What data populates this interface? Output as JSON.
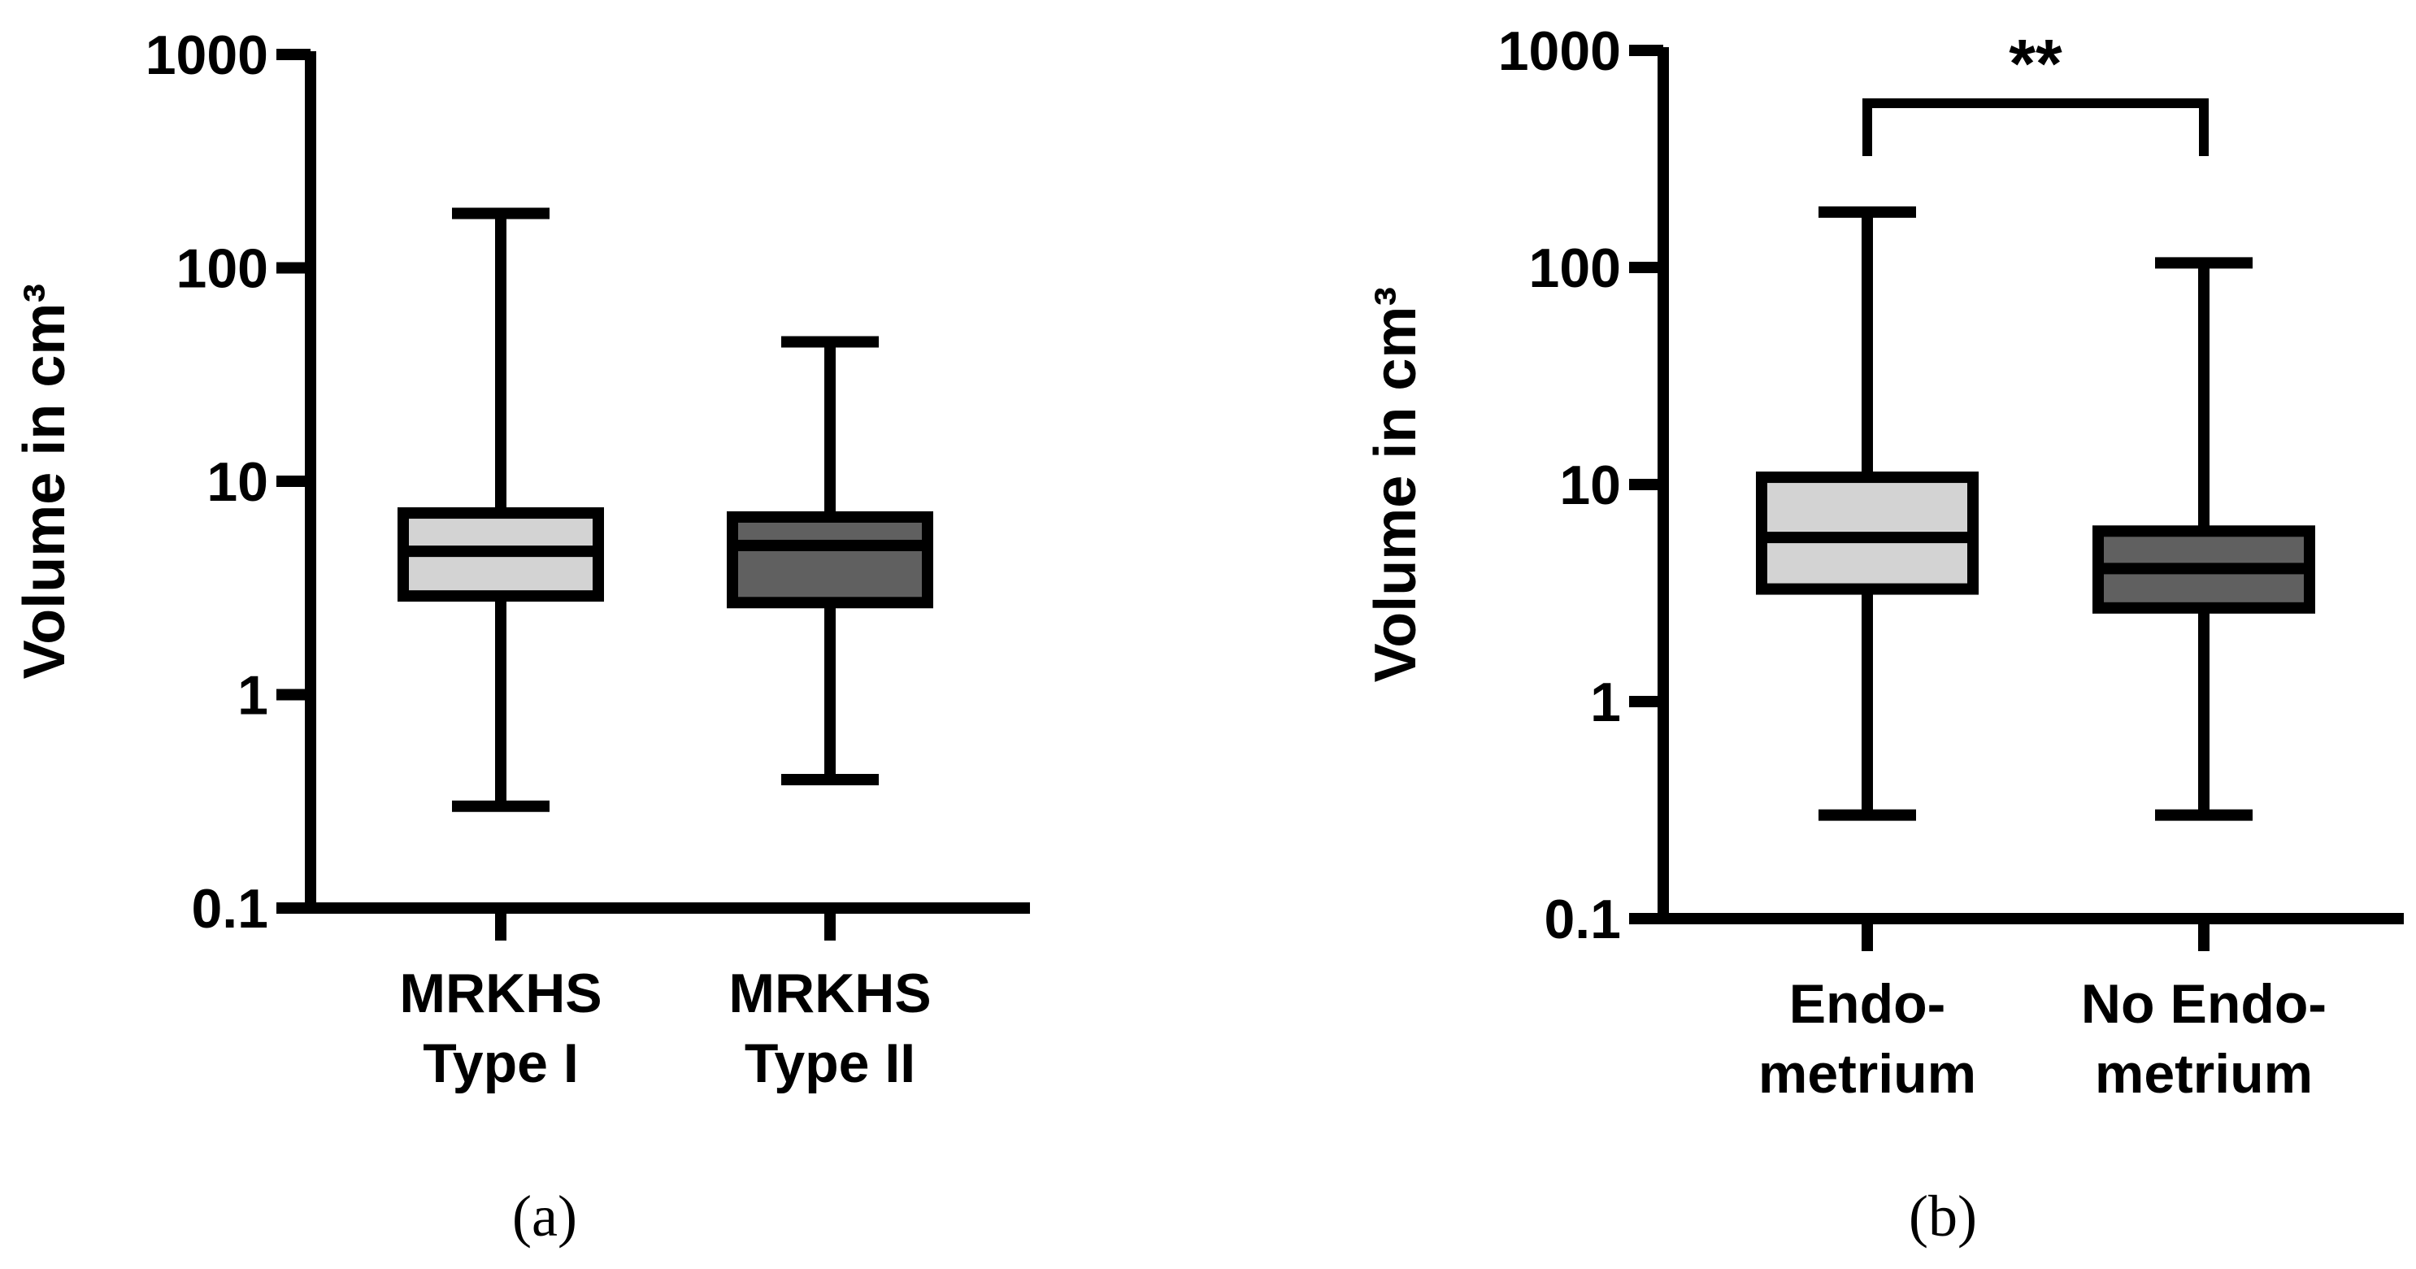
{
  "colors": {
    "axis": "#000000",
    "box_light": "#d3d3d3",
    "box_dark": "#606060"
  },
  "chart_data": [
    {
      "type": "box",
      "panel_label": "(a)",
      "ylabel": "Volume in cm³",
      "yscale": "log",
      "ylim": [
        0.1,
        1000
      ],
      "yticks": [
        "0.1",
        "1",
        "10",
        "100",
        "1000"
      ],
      "categories": [
        [
          "MRKHS",
          "Type I"
        ],
        [
          "MRKHS",
          "Type II"
        ]
      ],
      "boxes": [
        {
          "min": 0.3,
          "q1": 2.9,
          "median": 4.7,
          "q3": 7.1,
          "max": 180,
          "fill": "#d3d3d3"
        },
        {
          "min": 0.4,
          "q1": 2.7,
          "median": 5.0,
          "q3": 6.8,
          "max": 45,
          "fill": "#606060"
        }
      ],
      "significance": null
    },
    {
      "type": "box",
      "panel_label": "(b)",
      "ylabel": "Volume in cm³",
      "yscale": "log",
      "ylim": [
        0.1,
        1000
      ],
      "yticks": [
        "0.1",
        "1",
        "10",
        "100",
        "1000"
      ],
      "categories": [
        [
          "Endo-",
          "metrium"
        ],
        [
          "No Endo-",
          "metrium"
        ]
      ],
      "boxes": [
        {
          "min": 0.3,
          "q1": 3.3,
          "median": 5.7,
          "q3": 10.8,
          "max": 180,
          "fill": "#d3d3d3"
        },
        {
          "min": 0.3,
          "q1": 2.7,
          "median": 4.1,
          "q3": 6.1,
          "max": 105,
          "fill": "#606060"
        }
      ],
      "significance": {
        "label": "**",
        "between": [
          0,
          1
        ]
      }
    }
  ]
}
